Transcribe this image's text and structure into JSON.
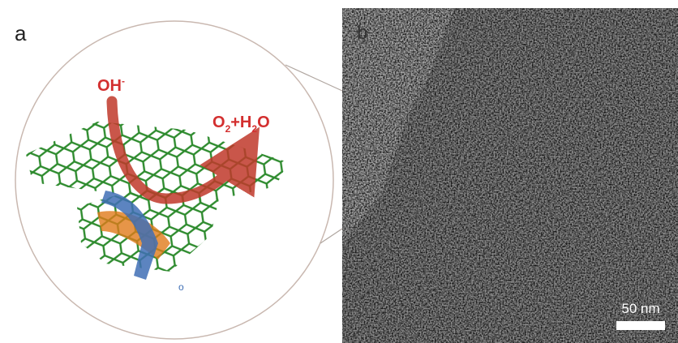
{
  "panel_a": {
    "label": "a",
    "reactant": {
      "text": "OH",
      "charge": "-"
    },
    "product": {
      "parts": [
        "O",
        "2",
        "+H",
        "2",
        "O"
      ]
    },
    "atom_label": "o"
  },
  "panel_b": {
    "label": "b",
    "scale_bar": "50 nm"
  }
}
